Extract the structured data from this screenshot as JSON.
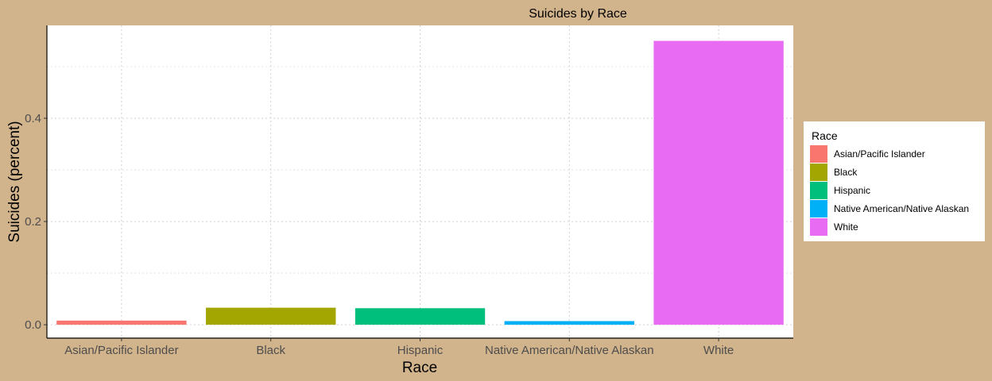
{
  "chart_data": {
    "type": "bar",
    "title": "Suicides by Race",
    "xlabel": "Race",
    "ylabel": "Suicides (percent)",
    "categories": [
      "Asian/Pacific Islander",
      "Black",
      "Hispanic",
      "Native American/Native Alaskan",
      "White"
    ],
    "values": [
      0.008,
      0.033,
      0.032,
      0.007,
      0.55
    ],
    "colors": [
      "#f8766d",
      "#a3a500",
      "#00bf7d",
      "#00b0f6",
      "#e76bf3"
    ],
    "ylim": [
      -0.026,
      0.58
    ],
    "yticks": [
      0.0,
      0.2,
      0.4
    ],
    "ytick_labels": [
      "0.0",
      "0.2",
      "0.4"
    ],
    "grid": true,
    "legend": {
      "title": "Race",
      "placement": "right",
      "entries": [
        "Asian/Pacific Islander",
        "Black",
        "Hispanic",
        "Native American/Native Alaskan",
        "White"
      ]
    }
  }
}
